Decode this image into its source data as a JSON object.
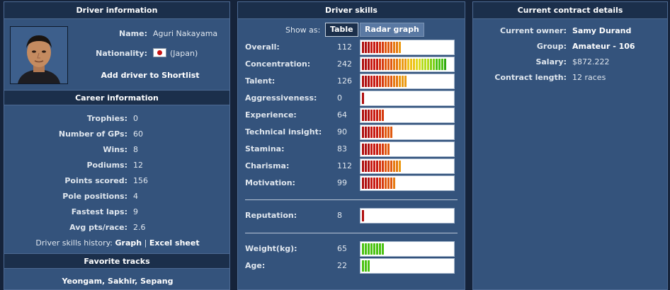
{
  "driver": {
    "header": "Driver information",
    "name_label": "Name:",
    "name": "Aguri Nakayama",
    "nationality_label": "Nationality:",
    "nationality": "(Japan)",
    "shortlist_link": "Add driver to Shortlist"
  },
  "career": {
    "header": "Career information",
    "rows": [
      {
        "label": "Trophies:",
        "value": "0"
      },
      {
        "label": "Number of GPs:",
        "value": "60"
      },
      {
        "label": "Wins:",
        "value": "8"
      },
      {
        "label": "Podiums:",
        "value": "12"
      },
      {
        "label": "Points scored:",
        "value": "156"
      },
      {
        "label": "Pole positions:",
        "value": "4"
      },
      {
        "label": "Fastest laps:",
        "value": "9"
      },
      {
        "label": "Avg pts/race:",
        "value": "2.6"
      }
    ],
    "history_label": "Driver skills history:",
    "history_graph": "Graph",
    "history_sep": "|",
    "history_excel": "Excel sheet"
  },
  "tracks": {
    "header": "Favorite tracks",
    "list": "Yeongam, Sakhir, Sepang"
  },
  "skills": {
    "header": "Driver skills",
    "show_as": "Show as:",
    "table_btn": "Table",
    "radar_btn": "Radar graph",
    "rows": [
      {
        "label": "Overall:",
        "value": "112"
      },
      {
        "label": "Concentration:",
        "value": "242"
      },
      {
        "label": "Talent:",
        "value": "126"
      },
      {
        "label": "Aggressiveness:",
        "value": "0"
      },
      {
        "label": "Experience:",
        "value": "64"
      },
      {
        "label": "Technical insight:",
        "value": "90"
      },
      {
        "label": "Stamina:",
        "value": "83"
      },
      {
        "label": "Charisma:",
        "value": "112"
      },
      {
        "label": "Motivation:",
        "value": "99"
      }
    ],
    "reputation": {
      "label": "Reputation:",
      "value": "8"
    },
    "physical": [
      {
        "label": "Weight(kg):",
        "value": "65"
      },
      {
        "label": "Age:",
        "value": "22"
      }
    ]
  },
  "contract": {
    "header": "Current contract details",
    "rows": [
      {
        "label": "Current owner:",
        "value": "Samy Durand"
      },
      {
        "label": "Group:",
        "value": "Amateur - 106"
      },
      {
        "label": "Salary:",
        "value": "$872.222"
      },
      {
        "label": "Contract length:",
        "value": "12 races"
      }
    ]
  },
  "colors": {
    "bar_scale": [
      "#b01010",
      "#c81a12",
      "#d63a10",
      "#e05a10",
      "#e67a12",
      "#eb9a14",
      "#eec21a",
      "#e0d820",
      "#b4dc1e",
      "#7fd01a",
      "#4cc214",
      "#2fa810"
    ],
    "physical_bar": "#4cc214"
  },
  "icons": {
    "flag": "japan-flag-icon",
    "photo": "driver-photo"
  },
  "bars": {
    "skill_levels": [
      112,
      242,
      126,
      0,
      64,
      90,
      83,
      112,
      99
    ],
    "reputation_level": 8,
    "physical_levels": [
      65,
      22
    ]
  }
}
